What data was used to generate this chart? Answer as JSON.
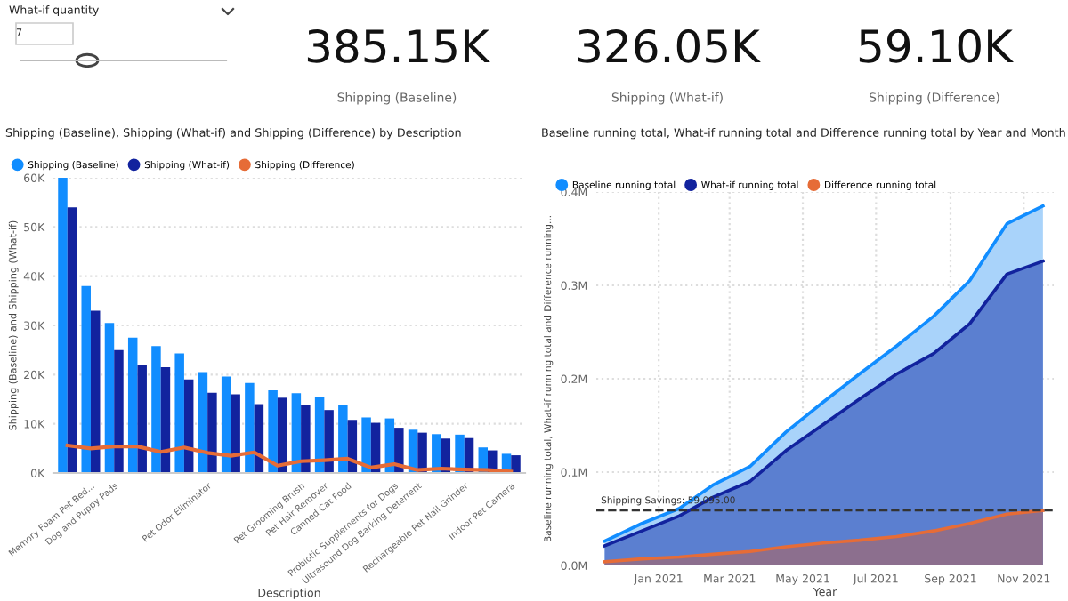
{
  "chart_data": [
    {
      "type": "other",
      "annotations": [
        "What-if quantity",
        "7",
        "385.15K",
        "Shipping (Baseline)",
        "326.05K",
        "Shipping (What-if)",
        "59.10K",
        "Shipping (Difference)"
      ]
    },
    {
      "type": "bar",
      "title": "Shipping (Baseline), Shipping (What-if) and Shipping (Difference) by Description",
      "xlabel": "Description",
      "ylabel": "Shipping (Baseline) and Shipping (What-if)",
      "categories": [
        null,
        "Memory Foam Pet Bed...",
        "Dog and Puppy Pads",
        null,
        null,
        null,
        "Pet Odor Eliminator",
        null,
        null,
        null,
        "Pet Grooming Brush",
        "Pet Hair Remover",
        "Canned Cat Food",
        null,
        "Probiotic Supplements for Dogs",
        "Ultrasound Dog Barking Deterrent",
        null,
        "Rechargeable Pet Nail Grinder",
        null,
        "Indoor Pet Camera"
      ],
      "series": [
        {
          "name": "Shipping (Baseline)",
          "color": "#118dff",
          "values": [
            60000,
            38000,
            30500,
            27500,
            25800,
            24300,
            20500,
            19600,
            18300,
            16800,
            16200,
            15500,
            13900,
            11300,
            11100,
            8800,
            7900,
            7800,
            5200,
            3900
          ]
        },
        {
          "name": "Shipping (What-if)",
          "color": "#12239e",
          "values": [
            54000,
            33000,
            25000,
            22000,
            21500,
            19000,
            16300,
            16000,
            14000,
            15300,
            13800,
            12800,
            10800,
            10200,
            9200,
            8200,
            7000,
            7100,
            4600,
            3600
          ]
        },
        {
          "name": "Shipping (Difference)",
          "color": "#e66c37",
          "type": "line",
          "values": [
            5600,
            5000,
            5400,
            5400,
            4300,
            5200,
            4100,
            3500,
            4200,
            1500,
            2400,
            2600,
            2900,
            1100,
            1800,
            600,
            900,
            700,
            600,
            300
          ]
        }
      ],
      "ylim": [
        0,
        60000
      ],
      "yticks": [
        {
          "value": 0,
          "label": "0K"
        },
        {
          "value": 10000,
          "label": "10K"
        },
        {
          "value": 20000,
          "label": "20K"
        },
        {
          "value": 30000,
          "label": "30K"
        },
        {
          "value": 40000,
          "label": "40K"
        },
        {
          "value": 50000,
          "label": "50K"
        },
        {
          "value": 60000,
          "label": "60K"
        }
      ],
      "grid": "y",
      "legend": "top left"
    },
    {
      "type": "area",
      "title": "Baseline running total, What-if running total and Difference running total by Year and Month",
      "xlabel": "Year",
      "ylabel": "Baseline running total, What-if running total and Difference running...",
      "x": [
        "2020-12",
        "2021-01",
        "2021-02",
        "2021-03",
        "2021-04",
        "2021-05",
        "2021-06",
        "2021-07",
        "2021-08",
        "2021-09",
        "2021-10",
        "2021-11",
        "2021-12"
      ],
      "series": [
        {
          "name": "Baseline running total",
          "color": "#118dff",
          "values": [
            0.026,
            0.045,
            0.061,
            0.086,
            0.106,
            0.143,
            0.175,
            0.205,
            0.235,
            0.267,
            0.305,
            0.366,
            0.385
          ]
        },
        {
          "name": "What-if running total",
          "color": "#12239e",
          "values": [
            0.021,
            0.037,
            0.053,
            0.073,
            0.09,
            0.123,
            0.151,
            0.178,
            0.205,
            0.227,
            0.259,
            0.312,
            0.326
          ]
        },
        {
          "name": "Difference running total",
          "color": "#e66c37",
          "values": [
            0.004,
            0.007,
            0.009,
            0.012,
            0.015,
            0.02,
            0.024,
            0.027,
            0.031,
            0.037,
            0.045,
            0.055,
            0.059
          ]
        }
      ],
      "xlim": [
        "2020-11-24",
        "2021-12-10"
      ],
      "xticks": [
        {
          "value": "2021-01-15",
          "label": "Jan 2021"
        },
        {
          "value": "2021-03-15",
          "label": "Mar 2021"
        },
        {
          "value": "2021-05-15",
          "label": "May 2021"
        },
        {
          "value": "2021-07-15",
          "label": "Jul 2021"
        },
        {
          "value": "2021-09-15",
          "label": "Sep 2021"
        },
        {
          "value": "2021-11-15",
          "label": "Nov 2021"
        }
      ],
      "ylim": [
        0,
        0.4
      ],
      "yticks": [
        {
          "value": 0,
          "label": "0.0M"
        },
        {
          "value": 0.1,
          "label": "0.1M"
        },
        {
          "value": 0.2,
          "label": "0.2M"
        },
        {
          "value": 0.3,
          "label": "0.3M"
        },
        {
          "value": 0.4,
          "label": "0.4M"
        }
      ],
      "ref_lines": [
        {
          "axis": "y",
          "value": 0.059095,
          "label": "Shipping Savings: 59,095.00",
          "color": "#333333",
          "line_style": "dashed"
        }
      ],
      "grid": true,
      "legend": "top left"
    }
  ]
}
